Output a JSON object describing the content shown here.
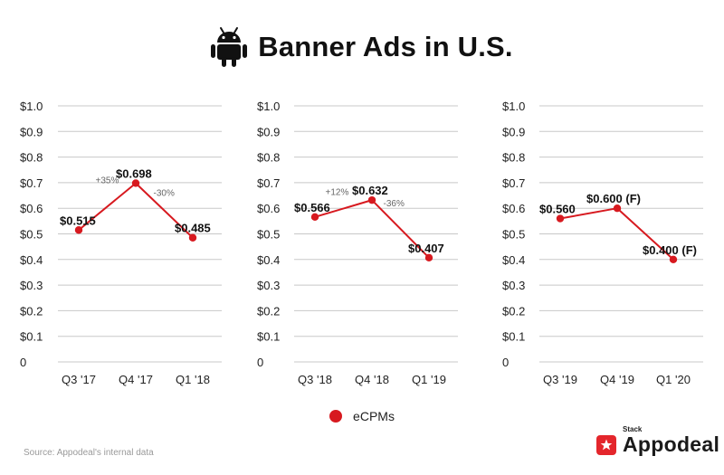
{
  "header": {
    "title": "Banner Ads in U.S.",
    "icon": "android-icon"
  },
  "chart_data": [
    {
      "type": "line",
      "title": "",
      "xlabel": "",
      "ylabel": "",
      "ylim": [
        0,
        1.0
      ],
      "yticks": [
        "0",
        "$0.1",
        "$0.2",
        "$0.3",
        "$0.4",
        "$0.5",
        "$0.6",
        "$0.7",
        "$0.8",
        "$0.9",
        "$1.0"
      ],
      "grid": true,
      "categories": [
        "Q3 '17",
        "Q4 '17",
        "Q1 '18"
      ],
      "series": [
        {
          "name": "eCPMs",
          "values": [
            0.515,
            0.698,
            0.485
          ],
          "color": "#d7191f"
        }
      ],
      "data_labels": [
        "$0.515",
        "$0.698",
        "$0.485"
      ],
      "annotations": [
        "+35%",
        "-30%"
      ]
    },
    {
      "type": "line",
      "title": "",
      "xlabel": "",
      "ylabel": "",
      "ylim": [
        0,
        1.0
      ],
      "yticks": [
        "0",
        "$0.1",
        "$0.2",
        "$0.3",
        "$0.4",
        "$0.5",
        "$0.6",
        "$0.7",
        "$0.8",
        "$0.9",
        "$1.0"
      ],
      "grid": true,
      "categories": [
        "Q3 '18",
        "Q4 '18",
        "Q1 '19"
      ],
      "series": [
        {
          "name": "eCPMs",
          "values": [
            0.566,
            0.632,
            0.407
          ],
          "color": "#d7191f"
        }
      ],
      "data_labels": [
        "$0.566",
        "$0.632",
        "$0.407"
      ],
      "annotations": [
        "+12%",
        "-36%"
      ]
    },
    {
      "type": "line",
      "title": "",
      "xlabel": "",
      "ylabel": "",
      "ylim": [
        0,
        1.0
      ],
      "yticks": [
        "0",
        "$0.1",
        "$0.2",
        "$0.3",
        "$0.4",
        "$0.5",
        "$0.6",
        "$0.7",
        "$0.8",
        "$0.9",
        "$1.0"
      ],
      "grid": true,
      "categories": [
        "Q3 '19",
        "Q4 '19",
        "Q1 '20"
      ],
      "series": [
        {
          "name": "eCPMs",
          "values": [
            0.56,
            0.6,
            0.4
          ],
          "color": "#d7191f"
        }
      ],
      "data_labels": [
        "$0.560",
        "$0.600 (F)",
        "$0.400 (F)"
      ],
      "annotations": []
    }
  ],
  "legend": {
    "label": "eCPMs",
    "position": "bottom-center",
    "color": "#d7191f"
  },
  "footer": {
    "source": "Source: Appodeal's internal data"
  },
  "logo": {
    "small": "Stack",
    "name": "Appodeal",
    "icon": "star-icon"
  }
}
